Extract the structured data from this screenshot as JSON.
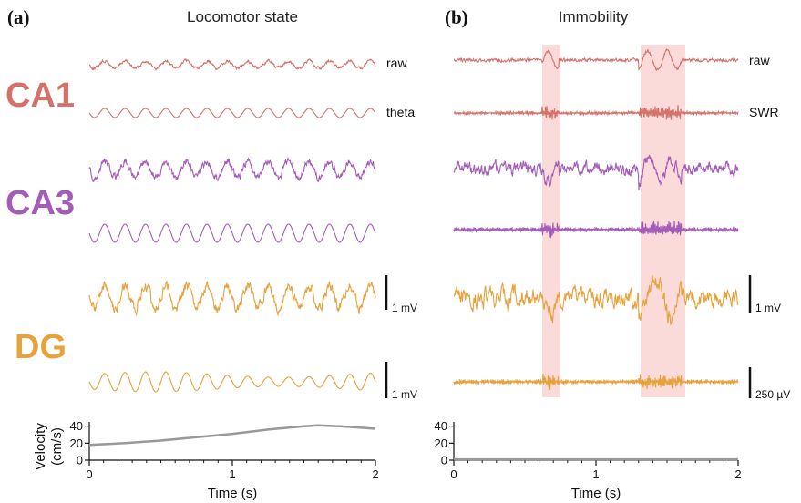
{
  "panels": [
    {
      "letter": "(a)",
      "title": "Locomotor state"
    },
    {
      "letter": "(b)",
      "title": "Immobility"
    }
  ],
  "regions": [
    {
      "name": "CA1",
      "color": "#d4716a"
    },
    {
      "name": "CA3",
      "color": "#a35cb8"
    },
    {
      "name": "DG",
      "color": "#e6a23c"
    }
  ],
  "trace_labels": {
    "a_ca1_raw": "raw",
    "a_ca1_filt": "theta",
    "b_ca1_raw": "raw",
    "b_ca1_filt": "SWR"
  },
  "scale_bars": {
    "a_dg_raw": "1 mV",
    "a_dg_filt": "1 mV",
    "b_dg_raw": "1 mV",
    "b_dg_filt": "250 µV"
  },
  "highlight_color": "#fbdada",
  "chart_data": [
    {
      "type": "line",
      "panel": "(a)",
      "xlabel": "Time (s)",
      "ylabel": "Velocity\n(cm/s)",
      "xlim": [
        0,
        2
      ],
      "ylim": [
        0,
        45
      ],
      "xticks": [
        0,
        1,
        2
      ],
      "yticks": [
        0,
        20,
        40
      ],
      "series": [
        {
          "color": "#999999",
          "x": [
            0,
            0.25,
            0.5,
            0.75,
            1.0,
            1.25,
            1.5,
            1.6,
            1.75,
            2.0
          ],
          "y": [
            18,
            20,
            23,
            27,
            31,
            36,
            40,
            41,
            40,
            37
          ]
        }
      ]
    },
    {
      "type": "line",
      "panel": "(b)",
      "xlabel": "Time (s)",
      "ylabel": "",
      "xlim": [
        0,
        2
      ],
      "ylim": [
        0,
        45
      ],
      "xticks": [
        0,
        1,
        2
      ],
      "yticks": [
        0,
        20,
        40
      ],
      "series": [
        {
          "color": "#999999",
          "x": [
            0,
            0.5,
            1.0,
            1.5,
            2.0
          ],
          "y": [
            1,
            1,
            1,
            1,
            1
          ]
        }
      ]
    }
  ]
}
